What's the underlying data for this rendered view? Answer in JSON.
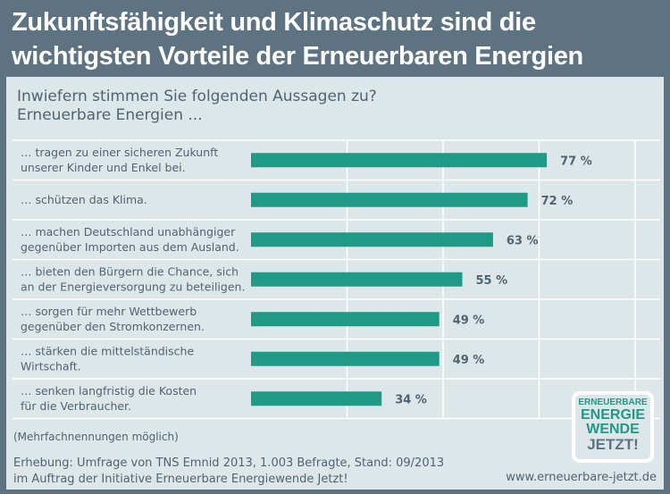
{
  "header": {
    "title_line1": "Zukunftsfähigkeit und Klimaschutz sind die",
    "title_line2": "wichtigsten Vorteile der Erneuerbaren Energien"
  },
  "question": {
    "line1": "Inwiefern stimmen Sie folgenden Aussagen zu?",
    "line2": "Erneuerbare Energien ..."
  },
  "chart_data": {
    "type": "bar",
    "orientation": "horizontal",
    "categories": [
      [
        "… tragen zu einer sicheren Zukunft",
        "unserer Kinder und Enkel bei."
      ],
      [
        "… schützen das Klima."
      ],
      [
        "… machen Deutschland unabhängiger",
        "gegenüber Importen aus dem Ausland."
      ],
      [
        "… bieten den Bürgern die Chance, sich",
        "an der Energieversorgung zu beteiligen."
      ],
      [
        "… sorgen für mehr Wettbewerb",
        "gegenüber den Stromkonzernen."
      ],
      [
        "… stärken die mittelständische",
        "Wirtschaft."
      ],
      [
        "… senken langfristig die Kosten",
        "für die Verbraucher."
      ]
    ],
    "values": [
      77,
      72,
      63,
      55,
      49,
      49,
      34
    ],
    "value_labels": [
      "77 %",
      "72 %",
      "63 %",
      "55 %",
      "49 %",
      "49 %",
      "34 %"
    ],
    "xlim": [
      0,
      100
    ],
    "grid": true,
    "bar_color": "#1e9a86"
  },
  "footer": {
    "note": "(Mehrfachnennungen möglich)",
    "source_line1": "Erhebung: Umfrage von TNS Emnid 2013, 1.003 Befragte, Stand: 09/2013",
    "source_line2": "im Auftrag der Initiative Erneuerbare Energiewende Jetzt!",
    "url": "www.erneuerbare-jetzt.de"
  },
  "logo": {
    "line1": "ERNEUERBARE",
    "line2": "ENERGIE",
    "line3": "WENDE",
    "line4": "JETZT!"
  }
}
